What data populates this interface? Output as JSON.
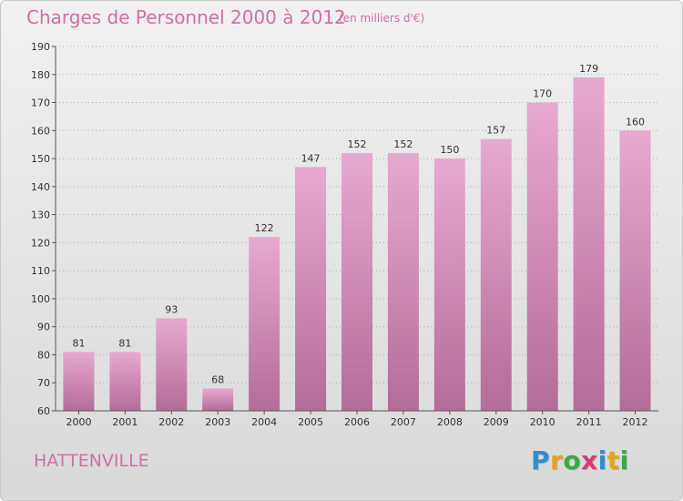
{
  "header": {
    "title": "Charges de Personnel 2000 à 2012",
    "subtitle": "(en milliers d'€)"
  },
  "commune": "HATTENVILLE",
  "logo": {
    "text": "Proxiti",
    "letter_colors": [
      "#2e8fd0",
      "#e8a21a",
      "#3aa845",
      "#d83a6f",
      "#2e8fd0",
      "#e8a21a",
      "#3aa845"
    ]
  },
  "colors": {
    "bar_top": "#e8a9d0",
    "bar_bottom": "#b46c98",
    "axis": "#555555",
    "grid": "#aaaaaa"
  },
  "chart_data": {
    "type": "bar",
    "title": "Charges de Personnel 2000 à 2012",
    "subtitle": "(en milliers d'€)",
    "categories": [
      "2000",
      "2001",
      "2002",
      "2003",
      "2004",
      "2005",
      "2006",
      "2007",
      "2008",
      "2009",
      "2010",
      "2011",
      "2012"
    ],
    "values": [
      81,
      81,
      93,
      68,
      122,
      147,
      152,
      152,
      150,
      157,
      170,
      179,
      160
    ],
    "ylim": [
      60,
      190
    ],
    "yticks": [
      60,
      70,
      80,
      90,
      100,
      110,
      120,
      130,
      140,
      150,
      160,
      170,
      180,
      190
    ],
    "grid": "horizontal dotted",
    "legend": "none"
  }
}
